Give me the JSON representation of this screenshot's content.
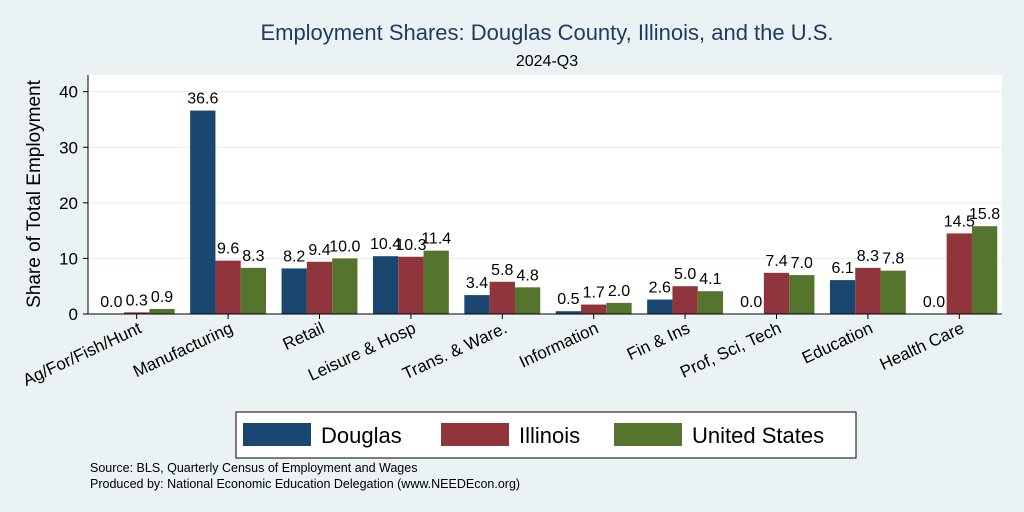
{
  "chart_data": {
    "type": "bar",
    "title": "Employment Shares: Douglas County, Illinois, and the U.S.",
    "subtitle": "2024-Q3",
    "ylabel": "Share of Total Employment",
    "xlabel": "",
    "ylim": [
      0,
      43
    ],
    "yticks": [
      0,
      10,
      20,
      30,
      40
    ],
    "grid": true,
    "legend_position": "bottom",
    "categories": [
      "Ag/For/Fish/Hunt",
      "Manufacturing",
      "Retail",
      "Leisure & Hosp",
      "Trans. & Ware.",
      "Information",
      "Fin & Ins",
      "Prof, Sci, Tech",
      "Education",
      "Health Care"
    ],
    "series": [
      {
        "name": "Douglas",
        "color": "#1a476f",
        "values": [
          0.0,
          36.6,
          8.2,
          10.4,
          3.4,
          0.5,
          2.6,
          0.0,
          6.1,
          0.0
        ]
      },
      {
        "name": "Illinois",
        "color": "#90353b",
        "values": [
          0.3,
          9.6,
          9.4,
          10.3,
          5.8,
          1.7,
          5.0,
          7.4,
          8.3,
          14.5
        ]
      },
      {
        "name": "United States",
        "color": "#55752f",
        "values": [
          0.9,
          8.3,
          10.0,
          11.4,
          4.8,
          2.0,
          4.1,
          7.0,
          7.8,
          15.8
        ]
      }
    ]
  },
  "notes": {
    "source": "Source: BLS, Quarterly Census of Employment and Wages",
    "produced": "Produced by: National Economic Education Delegation (www.NEEDEcon.org)"
  }
}
